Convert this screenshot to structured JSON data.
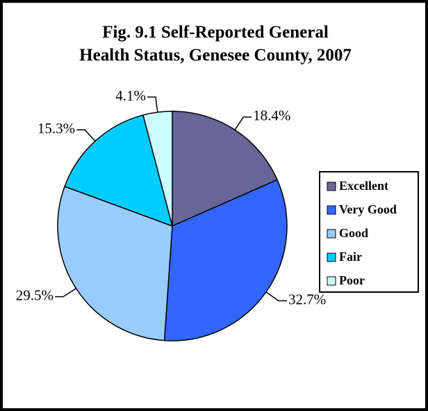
{
  "chart_data": {
    "type": "pie",
    "title": "Fig. 9.1 Self-Reported General Health Status, Genesee County, 2007",
    "categories": [
      "Excellent",
      "Very Good",
      "Good",
      "Fair",
      "Poor"
    ],
    "values": [
      18.4,
      32.7,
      29.5,
      15.3,
      4.1
    ],
    "value_labels": [
      "18.4%",
      "32.7%",
      "29.5%",
      "15.3%",
      "4.1%"
    ],
    "colors": [
      "#666699",
      "#3366ff",
      "#99ccff",
      "#00ccff",
      "#ccffff"
    ],
    "legend": "right"
  }
}
